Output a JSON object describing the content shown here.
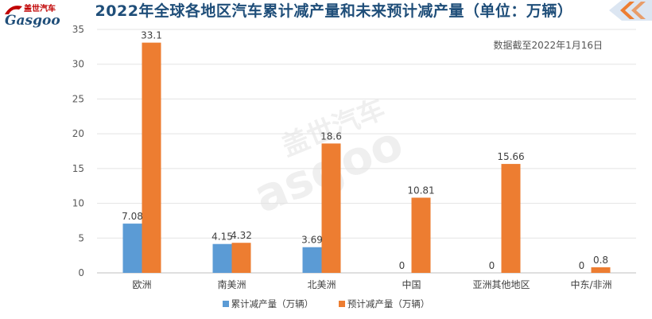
{
  "header": {
    "logo_text_cn": "盖世汽车",
    "logo_text_en": "Gasgoo"
  },
  "colors": {
    "title": "#1f4e79",
    "series_cumulative": "#5b9bd5",
    "series_forecast": "#ed7d31",
    "corner_accent": "#ed7d31"
  },
  "chart_data": {
    "type": "bar",
    "title": "2022年全球各地区汽车累计减产量和未来预计减产量（单位：万辆）",
    "annotation": "数据截至2022年1月16日",
    "categories": [
      "欧洲",
      "南美洲",
      "北美洲",
      "中国",
      "亚洲其他地区",
      "中东/非洲"
    ],
    "series": [
      {
        "name": "累计减产量（万辆）",
        "values": [
          7.08,
          4.15,
          3.69,
          0,
          0,
          0
        ],
        "labels": [
          "7.08",
          "4.15",
          "3.69",
          "0",
          "0",
          "0"
        ]
      },
      {
        "name": "预计减产量（万辆）",
        "values": [
          33.1,
          4.32,
          18.6,
          10.81,
          15.66,
          0.8
        ],
        "labels": [
          "33.1",
          "4.32",
          "18.6",
          "10.81",
          "15.66",
          "0.8"
        ]
      }
    ],
    "y_ticks": [
      "0",
      "5",
      "10",
      "15",
      "20",
      "25",
      "30",
      "35"
    ],
    "ylim": [
      0,
      35
    ],
    "grid": true,
    "legend_position": "bottom"
  }
}
